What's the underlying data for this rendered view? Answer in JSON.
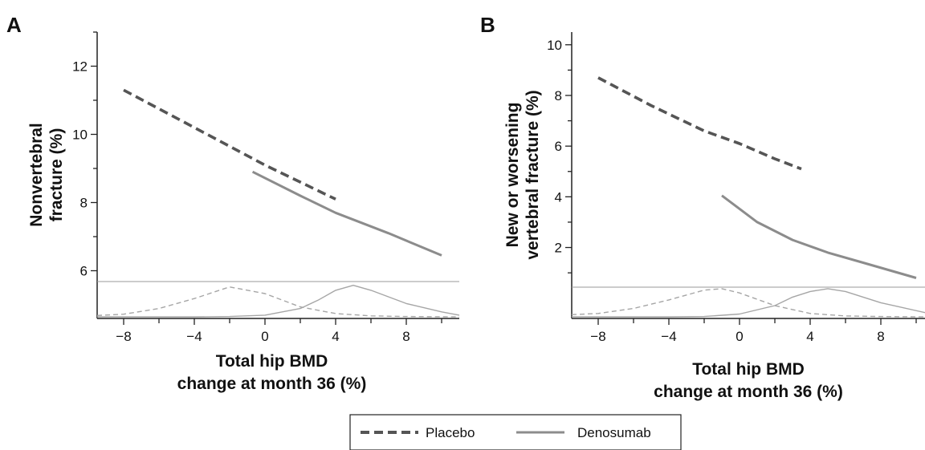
{
  "chart_data": [
    {
      "type": "line",
      "panel": "A",
      "xlabel": [
        "Total hip BMD",
        "change at month 36 (%)"
      ],
      "ylabel": [
        "Nonvertebral",
        "fracture (%)"
      ],
      "xlim": [
        -9.5,
        11
      ],
      "ylim": [
        4.6,
        13
      ],
      "xticks": [
        -8,
        -4,
        0,
        4,
        8
      ],
      "yticks": [
        6,
        8,
        10,
        12
      ],
      "density_baseline": 4.6,
      "density_top": 4.6,
      "series": [
        {
          "name": "Placebo",
          "style": "dashed",
          "x": [
            -8,
            -4,
            0,
            4
          ],
          "y": [
            11.3,
            10.2,
            9.1,
            8.1
          ]
        },
        {
          "name": "Denosumab",
          "style": "solid",
          "x": [
            -0.7,
            2,
            4,
            7,
            10
          ],
          "y": [
            8.9,
            8.2,
            7.7,
            7.1,
            6.45
          ]
        }
      ],
      "density": [
        {
          "name": "Placebo",
          "style": "dashed",
          "x": [
            -9.5,
            -8,
            -6,
            -4,
            -2,
            0,
            2,
            4,
            6,
            8,
            11
          ],
          "y": [
            0.04,
            0.08,
            0.25,
            0.55,
            0.9,
            0.7,
            0.3,
            0.1,
            0.03,
            0.01,
            0
          ]
        },
        {
          "name": "Denosumab",
          "style": "solid",
          "x": [
            -9.5,
            -4,
            -2,
            0,
            2,
            3,
            4,
            5,
            6,
            8,
            10,
            11
          ],
          "y": [
            0,
            0,
            0.01,
            0.05,
            0.25,
            0.5,
            0.8,
            0.95,
            0.8,
            0.4,
            0.15,
            0.05
          ]
        }
      ]
    },
    {
      "type": "line",
      "panel": "B",
      "xlabel": [
        "Total hip BMD",
        "change at month 36 (%)"
      ],
      "ylabel": [
        "New or worsening",
        "vertebral fracture (%)"
      ],
      "xlim": [
        -9.5,
        10.5
      ],
      "ylim": [
        -0.8,
        10.5
      ],
      "xticks": [
        -8,
        -4,
        0,
        4,
        8
      ],
      "yticks": [
        2,
        4,
        6,
        8,
        10
      ],
      "density_baseline": 0.4,
      "density_top": 0.4,
      "series": [
        {
          "name": "Placebo",
          "style": "dashed",
          "x": [
            -8,
            -5,
            -2,
            0,
            2,
            3.5
          ],
          "y": [
            8.7,
            7.6,
            6.6,
            6.1,
            5.5,
            5.1
          ]
        },
        {
          "name": "Denosumab",
          "style": "solid",
          "x": [
            -1,
            1,
            3,
            5,
            7,
            10
          ],
          "y": [
            4.05,
            3.0,
            2.3,
            1.8,
            1.4,
            0.8
          ]
        }
      ],
      "density": [
        {
          "name": "Placebo",
          "style": "dashed",
          "x": [
            -9.5,
            -8,
            -6,
            -4,
            -2,
            -1,
            0,
            2,
            4,
            6,
            8,
            10.5
          ],
          "y": [
            0.08,
            0.12,
            0.3,
            0.6,
            0.95,
            1.0,
            0.85,
            0.4,
            0.12,
            0.03,
            0.01,
            0
          ]
        },
        {
          "name": "Denosumab",
          "style": "solid",
          "x": [
            -9.5,
            -4,
            -2,
            0,
            2,
            3,
            4,
            5,
            6,
            8,
            10.5
          ],
          "y": [
            0,
            0,
            0.01,
            0.1,
            0.4,
            0.7,
            0.9,
            1.0,
            0.9,
            0.5,
            0.15
          ]
        }
      ]
    }
  ],
  "legend": {
    "items": [
      {
        "label": "Placebo",
        "style": "dashed"
      },
      {
        "label": "Denosumab",
        "style": "solid"
      }
    ]
  },
  "colors": {
    "placebo": "#555555",
    "denosumab": "#8c8c8c",
    "axis": "#222222",
    "density": "#a6a6a6",
    "divider": "#999999"
  }
}
